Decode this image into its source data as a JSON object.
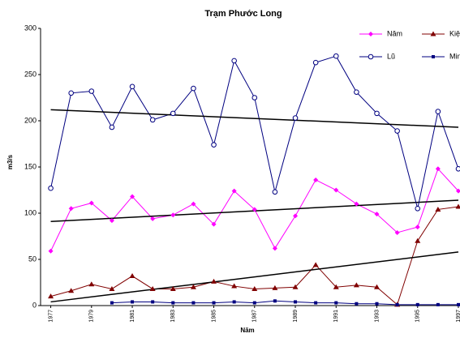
{
  "chart_data": {
    "type": "line",
    "title": "Trạm Phước Long",
    "x_label": "Năm",
    "y_label": "m3/s",
    "x": [
      1977,
      1978,
      1979,
      1980,
      1981,
      1982,
      1983,
      1984,
      1985,
      1986,
      1987,
      1988,
      1989,
      1990,
      1991,
      1992,
      1993,
      1994,
      1995,
      1996,
      1997
    ],
    "xlim": [
      1976.5,
      1997
    ],
    "xticks": [
      1977,
      1979,
      1981,
      1983,
      1985,
      1987,
      1989,
      1991,
      1993,
      1995,
      1997
    ],
    "ylim": [
      0,
      300
    ],
    "yticks": [
      0,
      50,
      100,
      150,
      200,
      250,
      300
    ],
    "grid": false,
    "legend": "top-right",
    "series": [
      {
        "name": "Năm",
        "color": "#ff00ff",
        "marker": "diamond",
        "values": [
          59,
          105,
          111,
          92,
          118,
          94,
          98,
          110,
          88,
          124,
          104,
          62,
          97,
          136,
          125,
          110,
          99,
          79,
          85,
          148,
          124
        ],
        "trend": [
          91,
          114
        ]
      },
      {
        "name": "Kiệt",
        "color": "#800000",
        "marker": "triangle",
        "values": [
          10,
          16,
          23,
          18,
          32,
          18,
          18,
          20,
          26,
          21,
          18,
          19,
          20,
          44,
          20,
          22,
          20,
          1,
          70,
          104,
          107
        ],
        "trend": [
          4,
          58
        ]
      },
      {
        "name": "Lũ",
        "color": "#000080",
        "marker": "circle",
        "values": [
          127,
          230,
          232,
          193,
          237,
          201,
          208,
          235,
          174,
          265,
          225,
          123,
          203,
          263,
          270,
          231,
          208,
          189,
          105,
          210,
          148
        ],
        "trend": [
          212,
          193
        ]
      },
      {
        "name": "Min",
        "color": "#000080",
        "marker": "square",
        "values": [
          null,
          null,
          null,
          3,
          4,
          4,
          3,
          3,
          3,
          4,
          3,
          5,
          4,
          3,
          3,
          2,
          2,
          1,
          1,
          1,
          1
        ]
      }
    ]
  }
}
